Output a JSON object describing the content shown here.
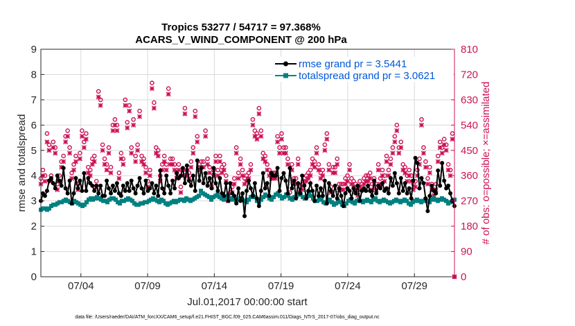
{
  "chart_data": {
    "type": "line",
    "title": "Tropics 53277 / 54717 = 97.368%",
    "subtitle": "ACARS_V_WIND_COMPONENT @ 200 hPa",
    "xlabel": "Jul.01,2017 00:00:00 start",
    "ylabel_left": "rmse and totalspread",
    "ylabel_right": "# of obs: o=possible; ×=assimilated",
    "footnote": "data file: /Users/raeder/DAI/ATM_forcXX/CAM6_setup/f.e21.FHIST_BGC.f09_025.CAM6assim.011/Diags_NTrS_2017-07/obs_diag_output.nc",
    "x_ticks": [
      "07/04",
      "07/09",
      "07/14",
      "07/19",
      "07/24",
      "07/29"
    ],
    "x_tick_days": [
      4,
      9,
      14,
      19,
      24,
      29
    ],
    "xlim_days": [
      1,
      32
    ],
    "ylim_left": [
      0,
      9
    ],
    "left_ticks": [
      "0",
      "1",
      "2",
      "3",
      "4",
      "5",
      "6",
      "7",
      "8",
      "9"
    ],
    "ylim_right": [
      0,
      810
    ],
    "right_ticks": [
      "0",
      "90",
      "180",
      "270",
      "360",
      "450",
      "540",
      "630",
      "720",
      "810"
    ],
    "colors": {
      "rmse": "#000000",
      "spread": "#008080",
      "obs": "#cc1155",
      "legend_text": "#0057d9"
    },
    "legend_placement": "top-right",
    "series": [
      {
        "name": "rmse grand pr = 3.5441",
        "axis": "left",
        "values": [
          3.0,
          3.3,
          3.2,
          3.4,
          3.8,
          3.9,
          3.7,
          3.5,
          4.0,
          3.8,
          3.6,
          4.3,
          3.5,
          3.3,
          3.8,
          2.9,
          3.3,
          3.9,
          3.5,
          3.8,
          3.4,
          4.1,
          3.4,
          3.9,
          3.7,
          3.6,
          3.4,
          3.6,
          3.3,
          3.6,
          3.2,
          3.2,
          3.8,
          3.5,
          3.3,
          3.6,
          3.4,
          3.7,
          3.3,
          3.2,
          3.6,
          3.4,
          3.7,
          3.4,
          3.8,
          3.5,
          3.3,
          3.6,
          3.9,
          3.5,
          3.3,
          3.8,
          3.4,
          3.5,
          3.7,
          3.3,
          3.6,
          3.2,
          4.2,
          3.5,
          3.3,
          4.0,
          3.6,
          3.3,
          3.8,
          3.5,
          4.1,
          3.9,
          4.0,
          4.3,
          3.7,
          4.4,
          3.8,
          3.6,
          4.0,
          3.4,
          4.6,
          3.8,
          4.3,
          3.7,
          4.1,
          3.6,
          3.9,
          3.5,
          4.3,
          3.7,
          3.4,
          3.9,
          3.3,
          3.2,
          3.7,
          3.0,
          3.7,
          3.3,
          3.2,
          2.9,
          3.5,
          3.0,
          3.3,
          2.4,
          3.4,
          3.8,
          3.5,
          3.2,
          3.7,
          3.1,
          2.8,
          3.4,
          4.1,
          3.5,
          3.7,
          3.2,
          4.1,
          4.0,
          4.0,
          4.3,
          3.4,
          3.9,
          4.1,
          3.8,
          3.3,
          4.3,
          3.5,
          3.8,
          3.1,
          3.7,
          3.3,
          4.0,
          3.6,
          3.1,
          3.4,
          3.7,
          3.4,
          3.0,
          3.6,
          3.2,
          3.5,
          3.2,
          3.8,
          2.9,
          3.7,
          3.4,
          3.2,
          3.6,
          3.1,
          3.5,
          3.2,
          2.8,
          3.3,
          3.5,
          3.4,
          3.1,
          3.5,
          3.3,
          3.6,
          3.0,
          3.4,
          3.5,
          3.4,
          3.6,
          3.4,
          3.2,
          3.8,
          3.3,
          3.6,
          3.5,
          3.7,
          3.4,
          3.5,
          3.3,
          3.9,
          3.6,
          4.1,
          3.7,
          3.3,
          3.9,
          3.4,
          3.7,
          3.3,
          3.5,
          3.1,
          3.8,
          4.7,
          4.5,
          3.5,
          3.9,
          3.7,
          3.1,
          2.6,
          3.2,
          3.6,
          3.4,
          3.3,
          4.2,
          3.6,
          4.5,
          3.8,
          3.5,
          3.6,
          3.3,
          3.0,
          2.8
        ]
      },
      {
        "name": "totalspread grand pr = 3.0621",
        "axis": "left",
        "values": [
          2.65,
          2.7,
          2.7,
          2.65,
          2.7,
          2.8,
          2.85,
          2.85,
          2.9,
          2.95,
          2.95,
          3.0,
          3.05,
          3.0,
          2.95,
          2.9,
          3.0,
          2.95,
          2.9,
          2.85,
          2.8,
          2.85,
          2.95,
          3.05,
          3.1,
          3.05,
          3.1,
          3.15,
          3.1,
          3.05,
          3.0,
          3.0,
          2.95,
          3.05,
          3.1,
          3.1,
          3.05,
          2.95,
          2.9,
          3.0,
          3.0,
          3.05,
          3.1,
          3.05,
          3.0,
          2.9,
          2.85,
          2.85,
          2.9,
          2.9,
          2.95,
          2.95,
          3.0,
          3.05,
          3.1,
          3.05,
          3.0,
          2.95,
          3.05,
          3.0,
          2.9,
          2.85,
          2.9,
          2.95,
          3.0,
          2.95,
          3.0,
          3.05,
          3.05,
          3.0,
          3.1,
          3.05,
          3.0,
          3.05,
          3.1,
          3.15,
          3.2,
          3.4,
          3.3,
          3.25,
          3.2,
          3.15,
          3.05,
          3.15,
          3.2,
          3.25,
          3.15,
          3.1,
          3.05,
          3.15,
          3.2,
          3.1,
          3.05,
          3.1,
          3.0,
          3.05,
          3.1,
          3.05,
          3.0,
          2.95,
          3.05,
          3.15,
          3.2,
          3.15,
          3.0,
          2.95,
          3.05,
          3.15,
          3.25,
          3.2,
          3.1,
          3.05,
          3.15,
          3.25,
          3.3,
          3.2,
          3.1,
          3.15,
          3.25,
          3.2,
          3.1,
          3.05,
          3.15,
          3.2,
          3.3,
          3.25,
          3.15,
          3.1,
          3.2,
          3.3,
          3.2,
          3.1,
          3.0,
          3.0,
          3.1,
          3.05,
          2.95,
          2.9,
          3.0,
          3.05,
          2.95,
          2.85,
          2.9,
          3.0,
          2.95,
          2.85,
          2.8,
          2.9,
          3.0,
          3.05,
          2.95,
          2.9,
          3.0,
          3.05,
          3.0,
          2.95,
          3.0,
          3.05,
          3.0,
          2.95,
          3.05,
          3.1,
          3.0,
          2.95,
          3.0,
          3.05,
          3.0,
          2.95,
          2.9,
          2.95,
          3.0,
          3.05,
          3.0,
          2.95,
          3.0,
          3.05,
          3.0,
          2.9,
          2.85,
          2.95,
          3.0,
          3.05,
          3.0,
          2.95,
          3.0,
          3.05,
          3.0,
          2.95,
          3.05,
          3.1,
          3.05,
          3.0,
          3.05,
          3.1,
          3.05,
          3.0,
          2.9,
          2.95,
          3.0,
          3.05
        ]
      },
      {
        "name": "# of obs possible",
        "axis": "right",
        "values": [
          350,
          380,
          360,
          510,
          470,
          360,
          480,
          460,
          330,
          360,
          410,
          430,
          500,
          520,
          460,
          370,
          400,
          430,
          330,
          440,
          520,
          480,
          510,
          390,
          380,
          420,
          430,
          340,
          660,
          630,
          470,
          420,
          400,
          460,
          390,
          540,
          560,
          540,
          370,
          440,
          420,
          630,
          550,
          610,
          460,
          560,
          430,
          470,
          590,
          430,
          420,
          390,
          340,
          380,
          690,
          620,
          460,
          450,
          360,
          400,
          430,
          400,
          670,
          420,
          420,
          400,
          370,
          400,
          320,
          380,
          600,
          380,
          370,
          410,
          460,
          590,
          500,
          400,
          410,
          410,
          520,
          420,
          390,
          340,
          380,
          430,
          380,
          430,
          390,
          400,
          360,
          290,
          300,
          320,
          350,
          460,
          370,
          420,
          380,
          350,
          360,
          370,
          400,
          560,
          520,
          510,
          600,
          520,
          440,
          430,
          400,
          380,
          370,
          370,
          370,
          500,
          460,
          510,
          460,
          460,
          420,
          300,
          400,
          350,
          350,
          420,
          320,
          330,
          350,
          360,
          370,
          380,
          420,
          410,
          460,
          400,
          370,
          380,
          470,
          510,
          400,
          320,
          390,
          390,
          420,
          330,
          330,
          330,
          350,
          360,
          400,
          350,
          340,
          330,
          310,
          340,
          330,
          350,
          360,
          360,
          370,
          330,
          350,
          330,
          400,
          350,
          380,
          360,
          430,
          380,
          420,
          460,
          500,
          540,
          460,
          480,
          400,
          390,
          360,
          380,
          360,
          330,
          340,
          380,
          420,
          560,
          460,
          410,
          350,
          390,
          330,
          310,
          330,
          430,
          480,
          460,
          490,
          470,
          400,
          380,
          510,
          0
        ]
      },
      {
        "name": "# of obs assimilated",
        "axis": "right",
        "values": [
          330,
          360,
          340,
          480,
          450,
          340,
          460,
          440,
          310,
          340,
          390,
          410,
          480,
          500,
          440,
          350,
          380,
          410,
          310,
          420,
          500,
          460,
          490,
          370,
          360,
          400,
          410,
          320,
          640,
          610,
          450,
          400,
          380,
          440,
          370,
          520,
          540,
          520,
          350,
          420,
          400,
          610,
          530,
          590,
          440,
          540,
          410,
          450,
          570,
          410,
          400,
          370,
          320,
          360,
          670,
          600,
          440,
          430,
          340,
          380,
          410,
          380,
          650,
          400,
          400,
          380,
          350,
          380,
          300,
          360,
          580,
          360,
          350,
          390,
          440,
          570,
          480,
          380,
          390,
          390,
          500,
          400,
          370,
          320,
          360,
          410,
          360,
          410,
          370,
          380,
          340,
          270,
          280,
          300,
          330,
          440,
          350,
          400,
          360,
          330,
          340,
          350,
          380,
          540,
          500,
          490,
          580,
          500,
          420,
          410,
          380,
          360,
          350,
          350,
          350,
          480,
          440,
          490,
          440,
          440,
          400,
          280,
          380,
          330,
          330,
          400,
          300,
          310,
          330,
          340,
          350,
          360,
          400,
          390,
          440,
          380,
          350,
          360,
          450,
          490,
          380,
          300,
          370,
          370,
          400,
          310,
          310,
          310,
          330,
          340,
          380,
          330,
          320,
          310,
          290,
          320,
          310,
          330,
          340,
          340,
          350,
          310,
          330,
          310,
          380,
          330,
          360,
          340,
          410,
          360,
          400,
          440,
          480,
          520,
          440,
          460,
          380,
          370,
          340,
          360,
          340,
          310,
          320,
          360,
          400,
          540,
          440,
          390,
          330,
          370,
          310,
          290,
          310,
          410,
          460,
          440,
          470,
          450,
          380,
          360,
          490,
          0
        ]
      }
    ]
  }
}
